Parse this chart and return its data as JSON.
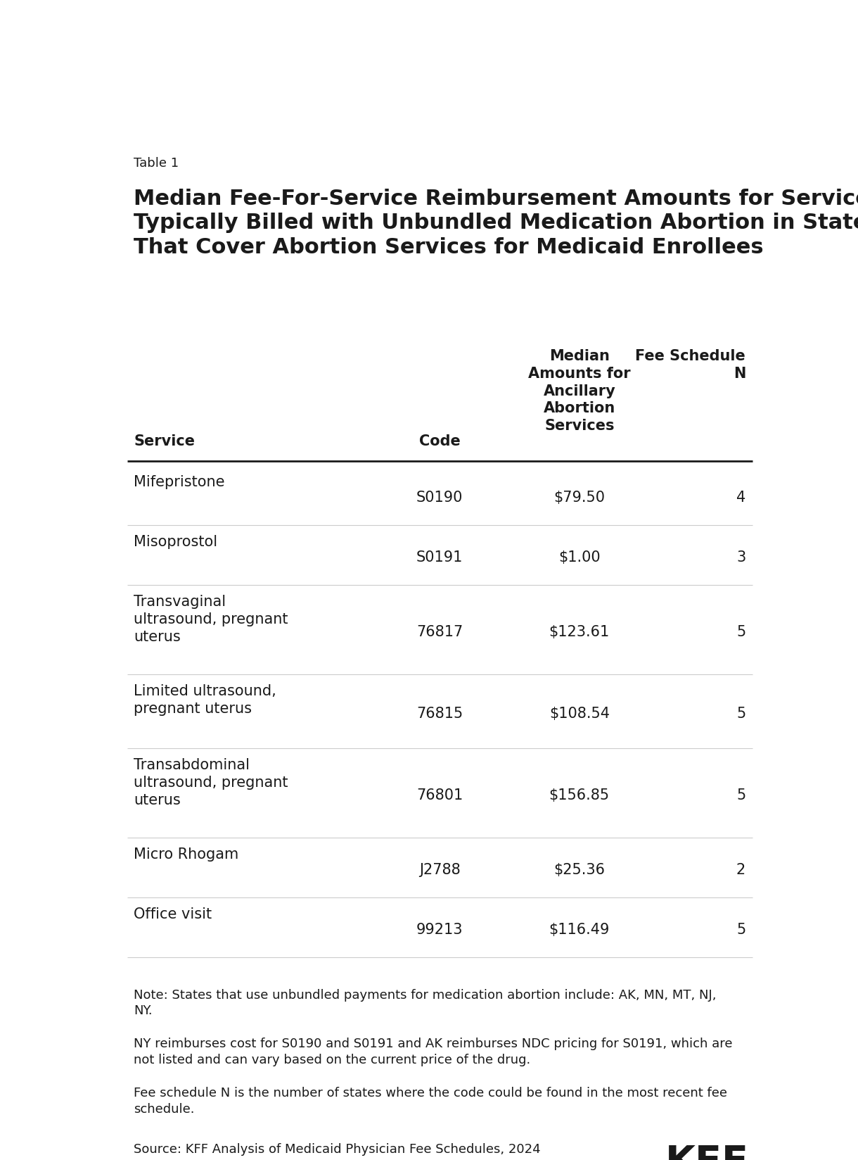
{
  "table_label": "Table 1",
  "title_line1": "Median Fee-For-Service Reimbursement Amounts for Services",
  "title_line2": "Typically Billed with Unbundled Medication Abortion in States",
  "title_line3": "That Cover Abortion Services for Medicaid Enrollees",
  "col_headers": {
    "service": "Service",
    "code": "Code",
    "median": "Median\nAmounts for\nAncillary\nAbortion\nServices",
    "fee_schedule": "Fee Schedule\nN"
  },
  "rows": [
    {
      "service": "Mifepristone",
      "code": "S0190",
      "median": "$79.50",
      "n": "4"
    },
    {
      "service": "Misoprostol",
      "code": "S0191",
      "median": "$1.00",
      "n": "3"
    },
    {
      "service": "Transvaginal\nultrasound, pregnant\nuterus",
      "code": "76817",
      "median": "$123.61",
      "n": "5"
    },
    {
      "service": "Limited ultrasound,\npregnant uterus",
      "code": "76815",
      "median": "$108.54",
      "n": "5"
    },
    {
      "service": "Transabdominal\nultrasound, pregnant\nuterus",
      "code": "76801",
      "median": "$156.85",
      "n": "5"
    },
    {
      "service": "Micro Rhogam",
      "code": "J2788",
      "median": "$25.36",
      "n": "2"
    },
    {
      "service": "Office visit",
      "code": "99213",
      "median": "$116.49",
      "n": "5"
    }
  ],
  "notes_line1": "Note: States that use unbundled payments for medication abortion include: AK, MN, MT, NJ,",
  "notes_line2": "NY.",
  "notes_line3": "NY reimburses cost for S0190 and S0191 and AK reimburses NDC pricing for S0191, which are",
  "notes_line4": "not listed and can vary based on the current price of the drug.",
  "notes_line5": "Fee schedule N is the number of states where the code could be found in the most recent fee",
  "notes_line6": "schedule.",
  "source": "Source: KFF Analysis of Medicaid Physician Fee Schedules, 2024",
  "kff_logo": "KFF",
  "bg_color": "#ffffff",
  "text_color": "#1a1a1a",
  "line_color": "#cccccc",
  "header_line_color": "#1a1a1a",
  "title_fontsize": 22,
  "table_label_fontsize": 13,
  "header_fontsize": 15,
  "cell_fontsize": 15,
  "note_fontsize": 13,
  "col_x": {
    "service": 0.04,
    "code": 0.5,
    "median": 0.71,
    "fee_schedule": 0.96
  }
}
